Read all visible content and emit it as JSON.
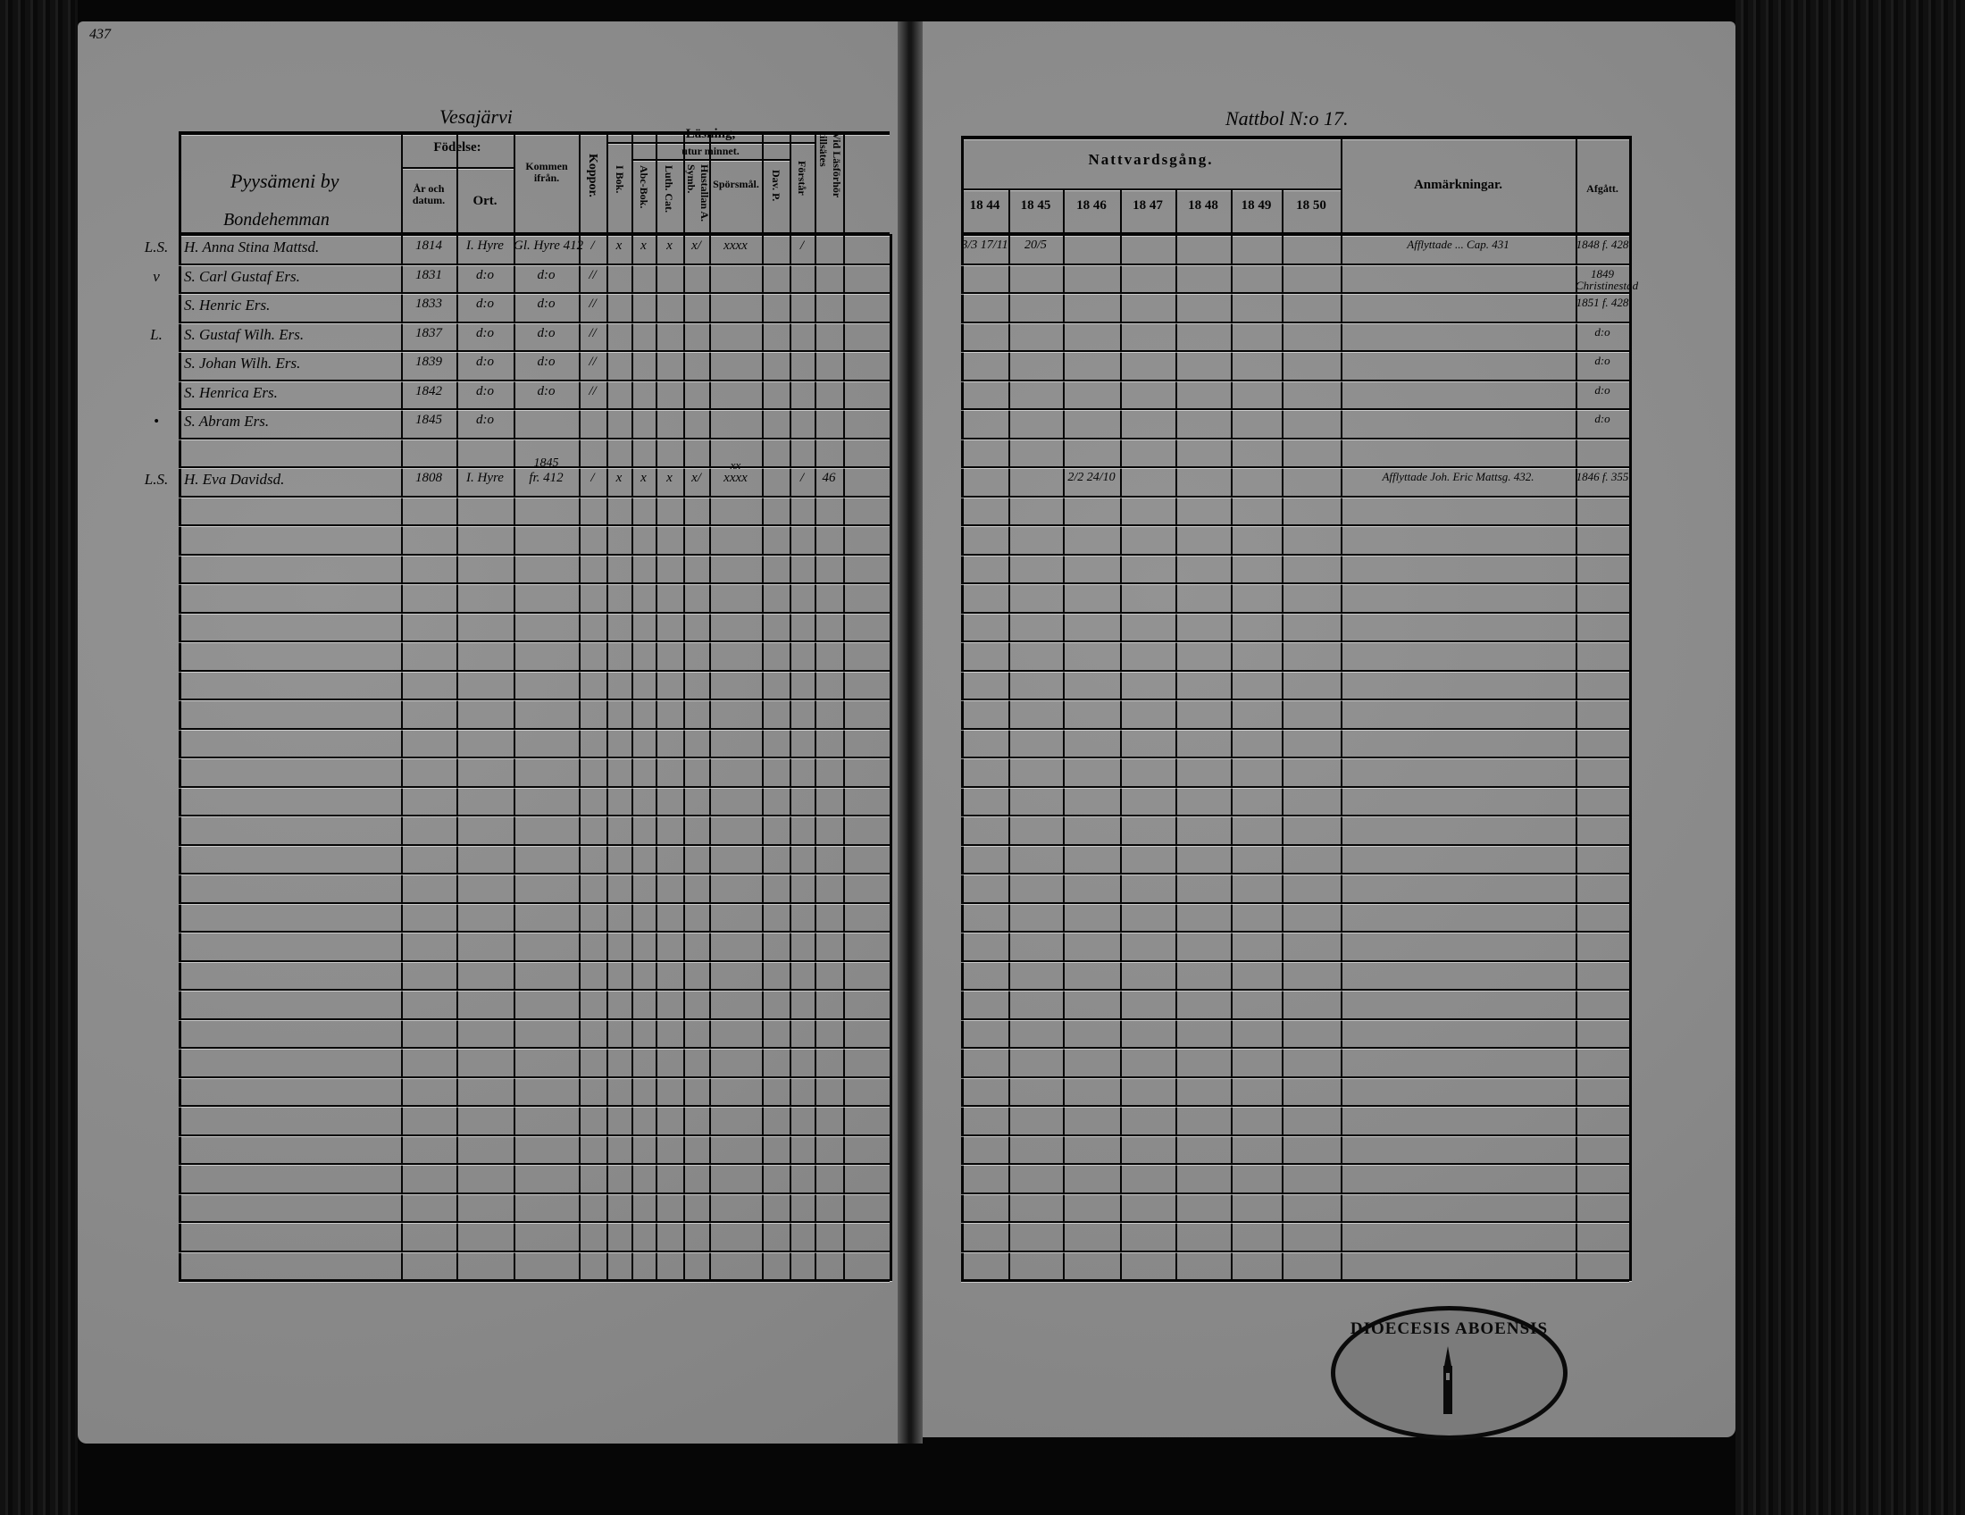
{
  "page_number": "437",
  "left_page": {
    "village_heading": "Vesajärvi",
    "headers": {
      "name_line1": "Pyysämeni by",
      "name_line2": "Bondehemman",
      "fodelse": "Födelse:",
      "ar_och_datum": "År och datum.",
      "ort": "Ort.",
      "kommen_ifran": "Kommen ifrån.",
      "koppor": "Koppor.",
      "lasning": "Läsning,",
      "utur_minnet": "utur minnet.",
      "i_bok": "I Bok.",
      "abc_bok": "Abc-Bok.",
      "luth_cat": "Luth. Cat.",
      "hustallan": "Hustallan A. Symb.",
      "sporsmal": "Spörsmål.",
      "dav_p": "Dav. P.",
      "forstar": "Förstår",
      "vid_lasforhor": "Vid Läsförhör tillsätes"
    },
    "rows": [
      {
        "margin": "L.S.",
        "name": "H. Anna Stina Mattsd.",
        "date": "1814",
        "ort": "I. Hyre",
        "kommen": "Gl. Hyre 412",
        "koppor": "/",
        "i_bok": "x",
        "abc_bok": "x",
        "luth_cat": "x",
        "hustallan": "x/",
        "sporsmal": "xxxx",
        "dav_p": "",
        "forstar": "/",
        "vid": ""
      },
      {
        "margin": "v",
        "name": "S. Carl Gustaf Ers.",
        "date": "1831",
        "ort": "d:o",
        "kommen": "d:o",
        "koppor": "//"
      },
      {
        "margin": "",
        "name": "S. Henric Ers.",
        "date": "1833",
        "ort": "d:o",
        "kommen": "d:o",
        "koppor": "//"
      },
      {
        "margin": "L.",
        "name": "S. Gustaf Wilh. Ers.",
        "date": "1837",
        "ort": "d:o",
        "kommen": "d:o",
        "koppor": "//"
      },
      {
        "margin": "",
        "name": "S. Johan Wilh. Ers.",
        "date": "1839",
        "ort": "d:o",
        "kommen": "d:o",
        "koppor": "//"
      },
      {
        "margin": "",
        "name": "S. Henrica Ers.",
        "date": "1842",
        "ort": "d:o",
        "kommen": "d:o",
        "koppor": "//"
      },
      {
        "margin": "•",
        "name": "S. Abram Ers.",
        "date": "1845",
        "ort": "d:o"
      },
      {},
      {
        "margin": "L.S.",
        "name": "H. Eva Davidsd.",
        "date": "1808",
        "ort": "I. Hyre",
        "kommen_year": "1845",
        "kommen": "fr. 412",
        "koppor": "/",
        "i_bok": "x",
        "abc_bok": "x",
        "luth_cat": "x",
        "hustallan": "x/",
        "sporsmal": "xxxx",
        "sporsmal_above": "xx",
        "forstar": "/",
        "vid": "46"
      }
    ]
  },
  "right_page": {
    "farm_heading": "Nattbol N:o 17.",
    "headers": {
      "nattvardsgang": "Nattvardsgång.",
      "years": [
        "18 44",
        "18 45",
        "18 46",
        "18 47",
        "18 48",
        "18 49",
        "18 50"
      ],
      "anmarkningar": "Anmärkningar.",
      "afgatt": "Afgått."
    },
    "rows": [
      {
        "y1844": "3/3 17/11",
        "y1845": "20/5",
        "anm": "Afflyttade ... Cap. 431",
        "afgatt": "1848 f. 428"
      },
      {
        "afgatt": "1849 Christinestad"
      },
      {
        "afgatt": "1851 f. 428"
      },
      {
        "afgatt": "d:o"
      },
      {
        "afgatt": "d:o"
      },
      {
        "afgatt": "d:o"
      },
      {
        "afgatt": "d:o"
      },
      {},
      {
        "y1846": "2/2 24/10",
        "anm": "Afflyttade Joh. Eric Mattsg. 432.",
        "afgatt": "1846 f. 355"
      }
    ]
  },
  "stamp_text": "DIOECESIS ABOENSIS",
  "colors": {
    "paper": "#8c8c8c",
    "ink": "#050505",
    "background": "#060606"
  }
}
